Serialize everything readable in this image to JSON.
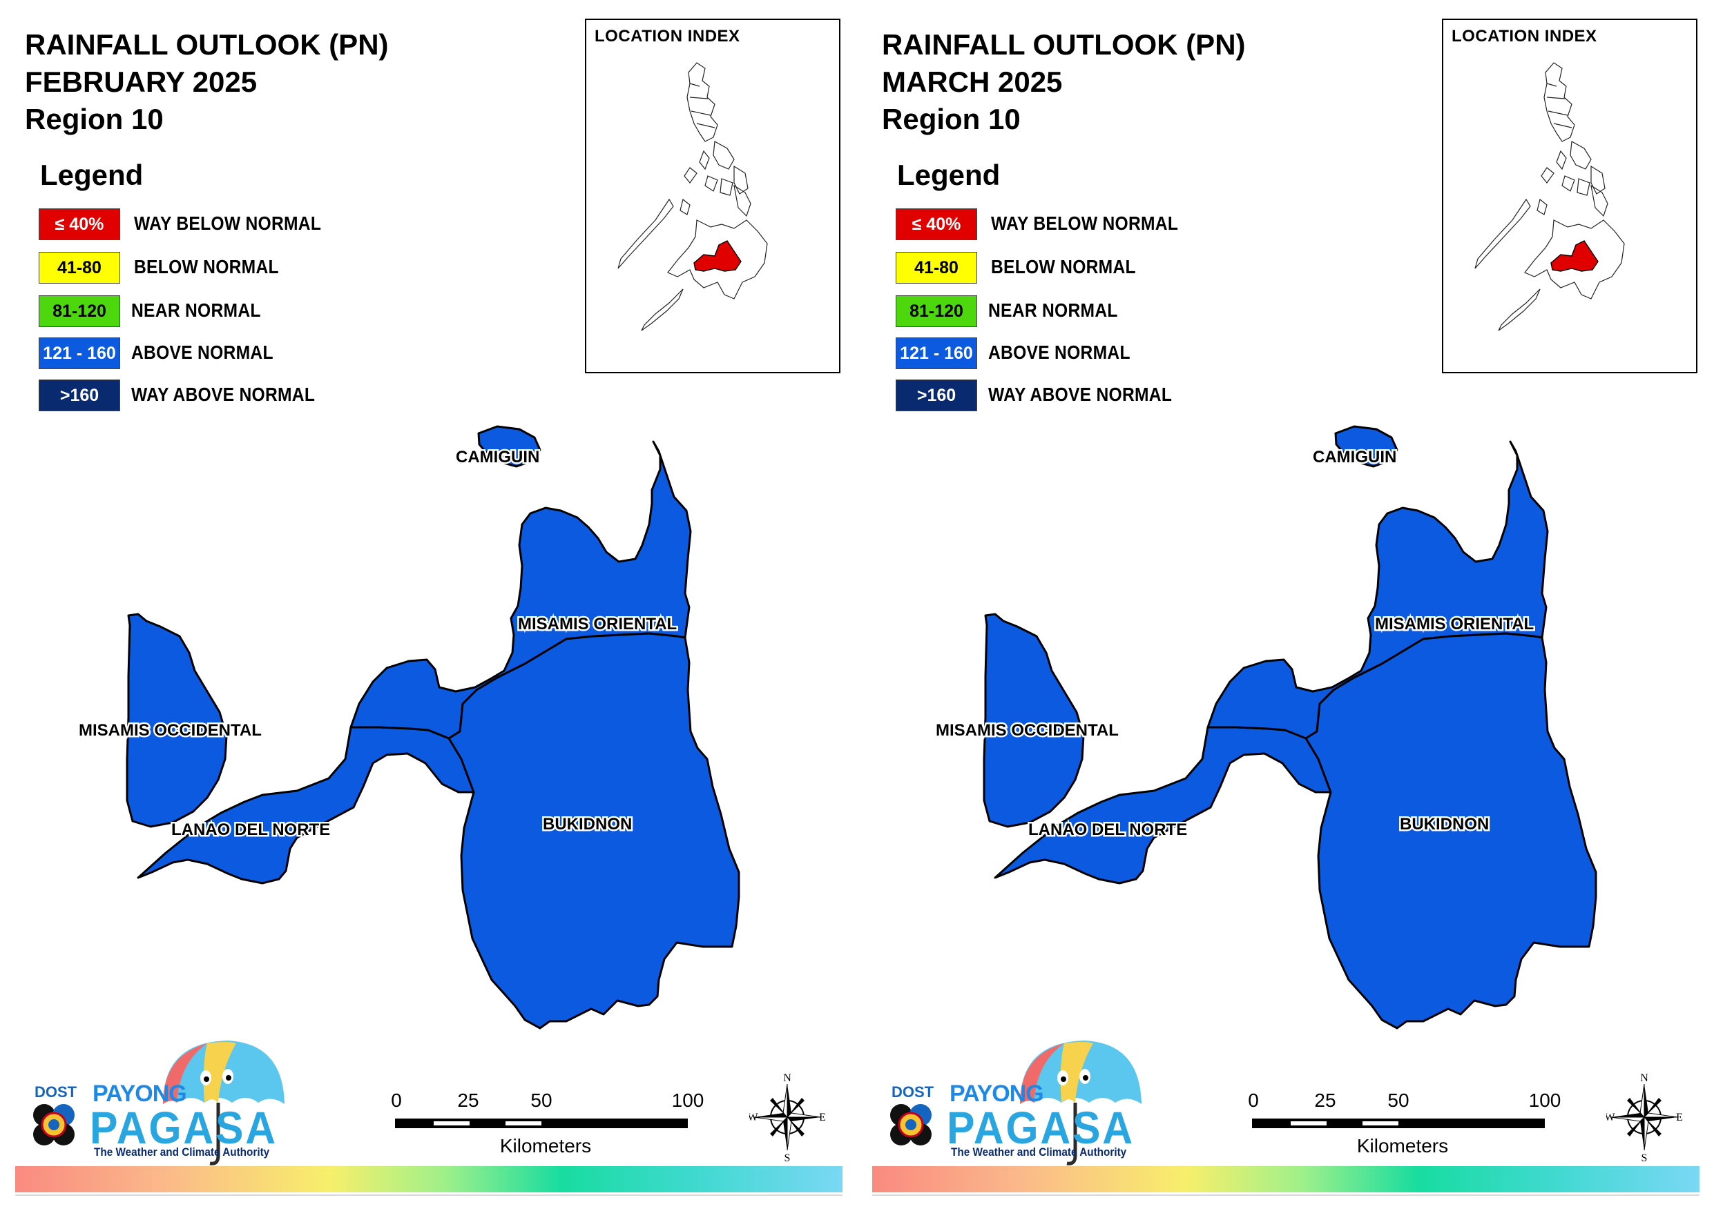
{
  "panels": [
    {
      "title_line1": "RAINFALL OUTLOOK (PN)",
      "title_line2": "FEBRUARY 2025",
      "title_line3": "Region 10"
    },
    {
      "title_line1": "RAINFALL OUTLOOK (PN)",
      "title_line2": "MARCH 2025",
      "title_line3": "Region 10"
    }
  ],
  "legend": {
    "title": "Legend",
    "items": [
      {
        "range": "≤ 40%",
        "label": "WAY BELOW NORMAL",
        "color": "#e10000"
      },
      {
        "range": "41-80",
        "label": "BELOW NORMAL",
        "color": "#ffff00"
      },
      {
        "range": "81-120",
        "label": "NEAR NORMAL",
        "color": "#4cd80c"
      },
      {
        "range": "121 - 160",
        "label": "ABOVE NORMAL",
        "color": "#0b5ae0"
      },
      {
        "range": ">160",
        "label": "WAY ABOVE NORMAL",
        "color": "#0a2a70"
      }
    ]
  },
  "location_index": {
    "title": "LOCATION INDEX",
    "highlight_color": "#e10000"
  },
  "provinces": {
    "camiguin": "CAMIGUIN",
    "misamis_oriental": "MISAMIS ORIENTAL",
    "misamis_occidental": "MISAMIS OCCIDENTAL",
    "lanao_del_norte": "LANAO DEL NORTE",
    "bukidnon": "BUKIDNON",
    "fill_color": "#0b5ae0",
    "category": "ABOVE NORMAL"
  },
  "scale_bar": {
    "ticks": [
      "0",
      "25",
      "50",
      "100"
    ],
    "unit": "Kilometers"
  },
  "compass": {
    "n": "N",
    "s": "S",
    "e": "E",
    "w": "W"
  },
  "logo": {
    "dost": "DOST",
    "payong": "PAYONG",
    "pagasa": "PAGASA",
    "tagline": "The Weather and Climate Authority"
  }
}
